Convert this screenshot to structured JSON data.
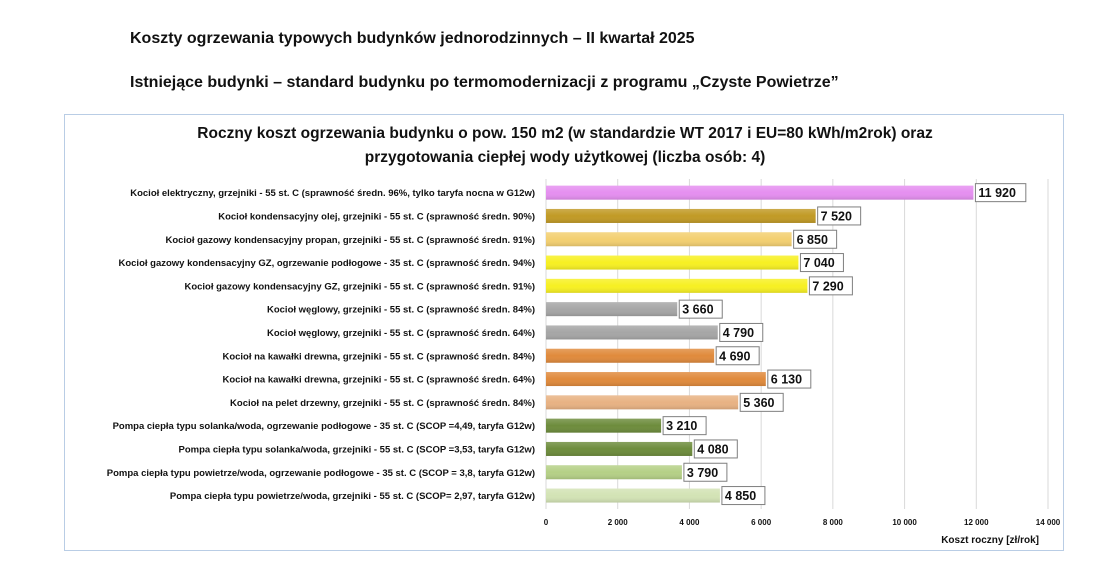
{
  "page": {
    "heading1": "Koszty ogrzewania typowych budynków jednorodzinnych – II kwartał 2025",
    "heading2": "Istniejące budynki – standard budynku po termomodernizacji z programu „Czyste Powietrze”"
  },
  "chart_data": {
    "type": "bar",
    "orientation": "horizontal",
    "title_line1": "Roczny koszt ogrzewania budynku o pow. 150 m2 (w standardzie WT 2017 i EU=80 kWh/m2rok) oraz",
    "title_line2": "przygotowania ciepłej wody użytkowej (liczba osób: 4)",
    "xlabel": "Koszt roczny [zł/rok]",
    "xlim": [
      0,
      14000
    ],
    "xticks": [
      0,
      2000,
      4000,
      6000,
      8000,
      10000,
      12000,
      14000
    ],
    "xtick_labels": [
      "0",
      "2 000",
      "4 000",
      "6 000",
      "8 000",
      "10 000",
      "12 000",
      "14 000"
    ],
    "grid": "vertical",
    "categories": [
      "Kocioł  elektryczny,  grzejniki - 55 st. C  (sprawność średn. 96%, tylko taryfa nocna w G12w)",
      "Kocioł  kondensacyjny olej,  grzejniki - 55 st. C (sprawność średn. 90%)",
      "Kocioł gazowy kondensacyjny propan, grzejniki - 55 st. C (sprawność średn. 91%)",
      "Kocioł gazowy kondensacyjny GZ, ogrzewanie podłogowe - 35 st. C (sprawność średn. 94%)",
      "Kocioł gazowy kondensacyjny GZ, grzejniki - 55 st. C (sprawność średn. 91%)",
      "Kocioł węglowy,  grzejniki - 55 st. C (sprawność średn. 84%)",
      "Kocioł węglowy,  grzejniki - 55 st. C (sprawność średn. 64%)",
      "Kocioł na kawałki drewna, grzejniki - 55 st. C (sprawność średn. 84%)",
      "Kocioł na kawałki drewna, grzejniki - 55 st. C (sprawność średn. 64%)",
      "Kocioł na pelet drzewny, grzejniki - 55 st. C (sprawność średn. 84%)",
      "Pompa ciepła typu solanka/woda, ogrzewanie podłogowe - 35 st. C (SCOP =4,49, taryfa G12w)",
      "Pompa ciepła typu solanka/woda, grzejniki - 55 st. C (SCOP =3,53, taryfa G12w)",
      "Pompa ciepła typu powietrze/woda, ogrzewanie podłogowe - 35 st. C (SCOP = 3,8, taryfa G12w)",
      "Pompa ciepła typu powietrze/woda, grzejniki - 55 st. C (SCOP= 2,97, taryfa G12w)"
    ],
    "values": [
      11920,
      7520,
      6850,
      7040,
      7290,
      3660,
      4790,
      4690,
      6130,
      5360,
      3210,
      4080,
      3790,
      4850
    ],
    "value_labels": [
      "11 920",
      "7 520",
      "6 850",
      "7 040",
      "7 290",
      "3 660",
      "4 790",
      "4 690",
      "6 130",
      "5 360",
      "3 210",
      "4 080",
      "3 790",
      "4 850"
    ],
    "colors": [
      "#e58ff0",
      "#c19a25",
      "#f3cf70",
      "#f7f022",
      "#f7f022",
      "#a6a6a6",
      "#a6a6a6",
      "#e08a3c",
      "#e08a3c",
      "#e8b283",
      "#6d8c3c",
      "#6d8c3c",
      "#b5d086",
      "#d3e3b5"
    ]
  }
}
